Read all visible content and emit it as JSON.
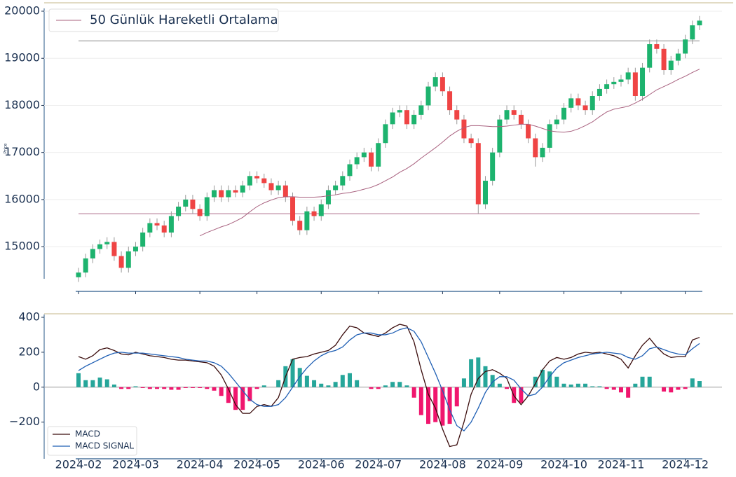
{
  "chart_data": [
    {
      "type": "candlestick",
      "ylabel": "Price",
      "open": [
        14350,
        14450,
        14750,
        14950,
        15050,
        15100,
        14800,
        14550,
        14900,
        15000,
        15300,
        15500,
        15450,
        15300,
        15650,
        15850,
        16000,
        15800,
        15650,
        16050,
        16200,
        16050,
        16200,
        16150,
        16300,
        16500,
        16450,
        16350,
        16200,
        16300,
        16050,
        15550,
        15350,
        15750,
        15650,
        15900,
        16200,
        16300,
        16500,
        16750,
        16900,
        17000,
        16700,
        17200,
        17600,
        17850,
        17900,
        17600,
        17800,
        18000,
        18400,
        18600,
        18300,
        17900,
        17700,
        17300,
        17200,
        15900,
        16400,
        17000,
        17700,
        17900,
        17800,
        17600,
        17300,
        16900,
        17100,
        17600,
        17700,
        17950,
        18150,
        18000,
        17900,
        18200,
        18350,
        18450,
        18500,
        18550,
        18700,
        18200,
        18800,
        19300,
        19200,
        18750,
        18950,
        19100,
        19400,
        19700
      ],
      "high": [
        14550,
        14850,
        15050,
        15150,
        15200,
        15200,
        14900,
        15000,
        15100,
        15400,
        15600,
        15600,
        15550,
        15750,
        15950,
        16100,
        16100,
        15900,
        16150,
        16300,
        16300,
        16300,
        16300,
        16400,
        16600,
        16600,
        16550,
        16450,
        16400,
        16400,
        16150,
        15650,
        15850,
        15850,
        16000,
        16300,
        16400,
        16600,
        16850,
        17000,
        17100,
        17100,
        17300,
        17700,
        17950,
        18000,
        18000,
        17900,
        18100,
        18500,
        18700,
        18700,
        18400,
        18000,
        17800,
        17400,
        17300,
        16500,
        17100,
        17800,
        18000,
        18000,
        17900,
        17700,
        17400,
        17200,
        17700,
        17800,
        18050,
        18250,
        18250,
        18100,
        18300,
        18450,
        18550,
        18600,
        18650,
        18800,
        18800,
        18900,
        19400,
        19400,
        19300,
        19050,
        19200,
        19500,
        19800,
        19900
      ],
      "low": [
        14250,
        14350,
        14650,
        14850,
        14950,
        14700,
        14450,
        14450,
        14800,
        14900,
        15200,
        15350,
        15200,
        15200,
        15550,
        15750,
        15700,
        15550,
        15550,
        15950,
        15950,
        15950,
        16050,
        16050,
        16200,
        16350,
        16250,
        16100,
        16100,
        15950,
        15450,
        15250,
        15250,
        15550,
        15550,
        15800,
        16100,
        16200,
        16400,
        16650,
        16800,
        16600,
        16600,
        17100,
        17500,
        17750,
        17500,
        17500,
        17700,
        17900,
        18300,
        18200,
        17800,
        17600,
        17200,
        17100,
        15700,
        15800,
        16300,
        16900,
        17600,
        17700,
        17500,
        17200,
        16700,
        16800,
        17000,
        17500,
        17600,
        17850,
        17900,
        17800,
        17800,
        18100,
        18250,
        18350,
        18400,
        18450,
        18100,
        18100,
        18700,
        19100,
        18650,
        18650,
        18850,
        19000,
        19300,
        19600
      ],
      "close": [
        14450,
        14750,
        14950,
        15050,
        15100,
        14800,
        14550,
        14900,
        15000,
        15300,
        15500,
        15450,
        15300,
        15650,
        15850,
        16000,
        15800,
        15650,
        16050,
        16200,
        16050,
        16200,
        16150,
        16300,
        16500,
        16450,
        16350,
        16200,
        16300,
        16050,
        15550,
        15350,
        15750,
        15650,
        15900,
        16200,
        16300,
        16500,
        16750,
        16900,
        17000,
        16700,
        17200,
        17600,
        17850,
        17900,
        17600,
        17800,
        18000,
        18400,
        18600,
        18300,
        17900,
        17700,
        17300,
        17200,
        15900,
        16400,
        17000,
        17700,
        17900,
        17800,
        17600,
        17300,
        16900,
        17100,
        17600,
        17700,
        17950,
        18150,
        18000,
        17900,
        18200,
        18350,
        18450,
        18500,
        18550,
        18700,
        18200,
        18800,
        19300,
        19200,
        18750,
        18950,
        19100,
        19400,
        19700,
        19800
      ],
      "up_color": "#1db36e",
      "down_color": "#ef4444",
      "series": [
        {
          "name": "50 Günlük Hareketli Ortalama",
          "color": "#a8607e",
          "values": [
            null,
            null,
            null,
            null,
            null,
            null,
            null,
            null,
            null,
            null,
            null,
            null,
            null,
            null,
            null,
            null,
            null,
            15230,
            15300,
            15360,
            15420,
            15470,
            15540,
            15620,
            15740,
            15850,
            15930,
            15990,
            16040,
            16060,
            16060,
            16050,
            16050,
            16050,
            16060,
            16080,
            16100,
            16130,
            16150,
            16180,
            16220,
            16260,
            16320,
            16400,
            16480,
            16580,
            16660,
            16760,
            16880,
            16990,
            17100,
            17220,
            17350,
            17450,
            17530,
            17570,
            17570,
            17560,
            17550,
            17550,
            17560,
            17580,
            17600,
            17600,
            17560,
            17510,
            17460,
            17440,
            17430,
            17450,
            17500,
            17570,
            17650,
            17760,
            17860,
            17920,
            17950,
            17980,
            18050,
            18130,
            18230,
            18330,
            18400,
            18470,
            18550,
            18620,
            18700,
            18770
          ]
        }
      ],
      "hlines": [
        {
          "value": 19370,
          "color": "#b0b0b0"
        },
        {
          "value": 15700,
          "color": "#c9a0b4"
        }
      ],
      "ylim": [
        14050,
        20000
      ],
      "yticks": [
        15000,
        16000,
        17000,
        18000,
        19000,
        20000
      ],
      "grid": true,
      "legend": "upper left"
    },
    {
      "type": "macd",
      "categories": [
        "2024-02",
        null,
        null,
        null,
        null,
        null,
        null,
        null,
        "2024-03",
        null,
        null,
        null,
        null,
        null,
        null,
        null,
        null,
        "2024-04",
        null,
        null,
        null,
        null,
        null,
        null,
        null,
        "2024-05",
        null,
        null,
        null,
        null,
        null,
        null,
        null,
        null,
        "2024-06",
        null,
        null,
        null,
        null,
        null,
        null,
        null,
        "2024-07",
        null,
        null,
        null,
        null,
        null,
        null,
        null,
        null,
        "2024-08",
        null,
        null,
        null,
        null,
        null,
        null,
        null,
        "2024-09",
        null,
        null,
        null,
        null,
        null,
        null,
        null,
        null,
        "2024-10",
        null,
        null,
        null,
        null,
        null,
        null,
        null,
        "2024-11",
        null,
        null,
        null,
        null,
        null,
        null,
        null,
        null,
        "2024-12",
        null,
        null
      ],
      "series": [
        {
          "name": "MACD",
          "color": "#3a0c0c",
          "values": [
            175,
            160,
            180,
            215,
            225,
            210,
            190,
            185,
            200,
            190,
            180,
            175,
            170,
            160,
            155,
            155,
            150,
            145,
            140,
            120,
            70,
            -10,
            -100,
            -150,
            -150,
            -110,
            -100,
            -110,
            -60,
            60,
            160,
            170,
            175,
            190,
            200,
            210,
            240,
            300,
            350,
            340,
            310,
            300,
            290,
            310,
            340,
            360,
            350,
            260,
            100,
            -40,
            -120,
            -240,
            -340,
            -330,
            -200,
            -40,
            50,
            90,
            100,
            80,
            50,
            -50,
            -100,
            -50,
            20,
            100,
            150,
            170,
            160,
            170,
            190,
            200,
            195,
            200,
            190,
            180,
            160,
            110,
            180,
            240,
            280,
            230,
            190,
            170,
            175,
            175,
            270,
            285
          ]
        },
        {
          "name": "MACD SIGNAL",
          "color": "#1f5fb4",
          "values": [
            95,
            120,
            140,
            160,
            180,
            195,
            200,
            195,
            195,
            195,
            190,
            185,
            180,
            175,
            170,
            160,
            155,
            150,
            150,
            140,
            120,
            80,
            30,
            -20,
            -70,
            -100,
            -110,
            -110,
            -100,
            -60,
            0,
            60,
            110,
            150,
            180,
            200,
            210,
            230,
            270,
            300,
            310,
            310,
            300,
            300,
            310,
            330,
            340,
            320,
            260,
            170,
            80,
            -20,
            -130,
            -220,
            -250,
            -200,
            -120,
            -30,
            30,
            60,
            60,
            40,
            -10,
            -50,
            -40,
            0,
            60,
            110,
            140,
            155,
            170,
            180,
            190,
            195,
            200,
            195,
            190,
            170,
            160,
            180,
            220,
            230,
            215,
            200,
            190,
            185,
            220,
            250
          ]
        }
      ],
      "histogram": [
        80,
        40,
        40,
        55,
        45,
        15,
        -10,
        -10,
        5,
        -5,
        -10,
        -10,
        -10,
        -15,
        -15,
        -5,
        -5,
        -5,
        -10,
        -20,
        -50,
        -90,
        -130,
        -130,
        -80,
        -10,
        10,
        0,
        40,
        120,
        160,
        110,
        65,
        40,
        20,
        10,
        30,
        70,
        80,
        40,
        0,
        -10,
        -10,
        10,
        30,
        30,
        10,
        -60,
        -160,
        -210,
        -200,
        -220,
        -210,
        -110,
        50,
        160,
        170,
        120,
        70,
        20,
        -10,
        -90,
        -90,
        0,
        60,
        100,
        90,
        60,
        20,
        15,
        20,
        20,
        5,
        5,
        -10,
        -15,
        -30,
        -60,
        20,
        60,
        60,
        0,
        -25,
        -30,
        -15,
        -10,
        50,
        35
      ],
      "pos_color": "#26a69a",
      "neg_color": "#f0166e",
      "ylim": [
        -410,
        400
      ],
      "yticks": [
        {
          "value": -200,
          "label": "−200"
        },
        0,
        200,
        400
      ],
      "legend": "lower left"
    }
  ]
}
